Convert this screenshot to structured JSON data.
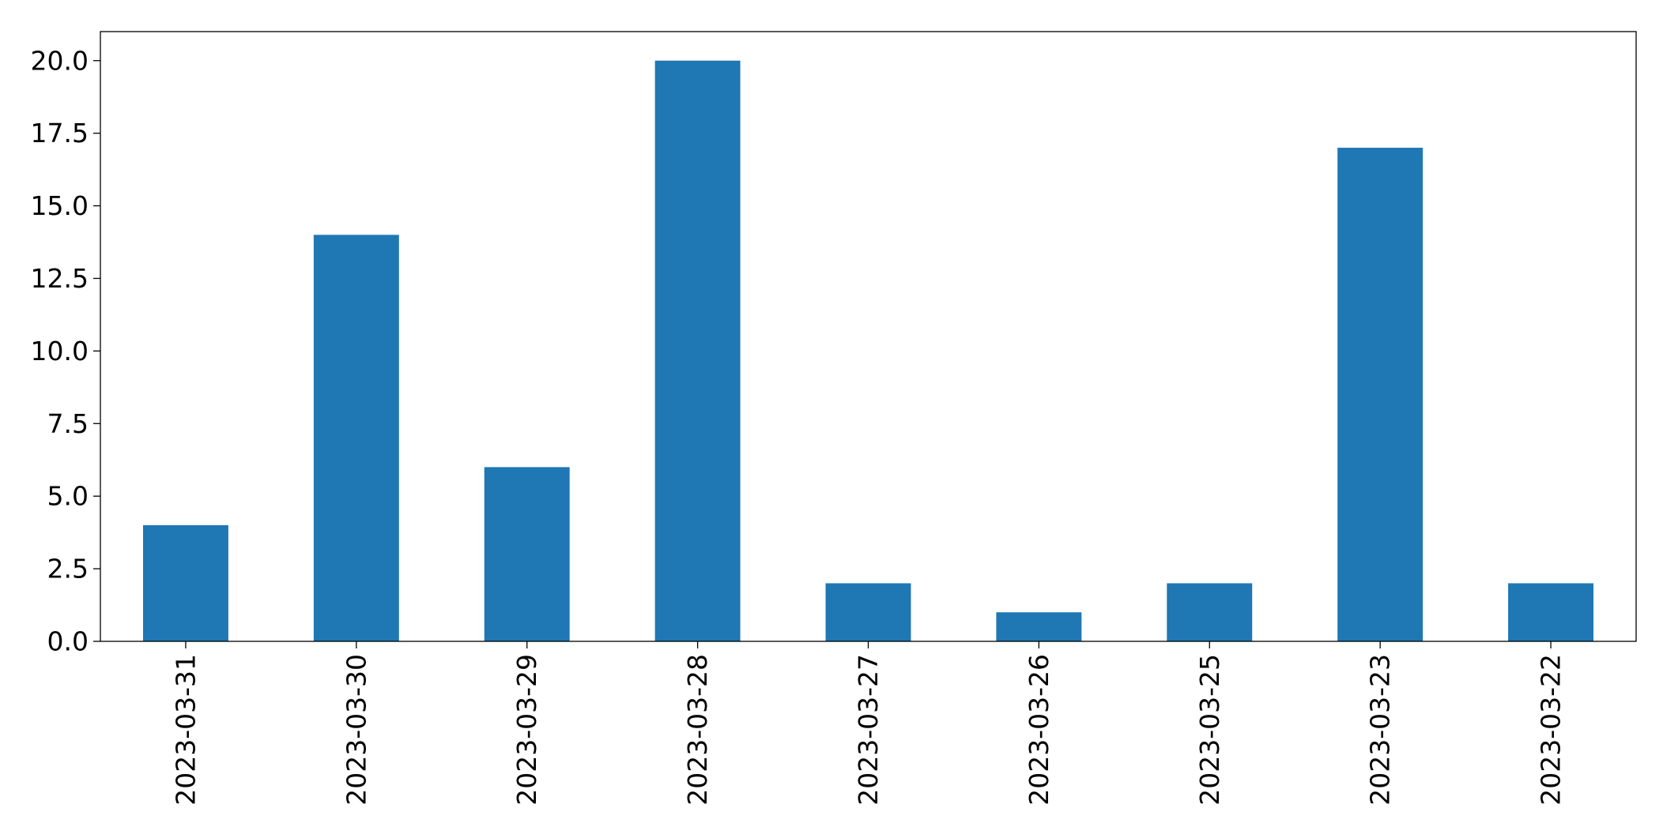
{
  "chart_data": {
    "type": "bar",
    "title": "",
    "xlabel": "",
    "ylabel": "",
    "categories": [
      "2023-03-31",
      "2023-03-30",
      "2023-03-29",
      "2023-03-28",
      "2023-03-27",
      "2023-03-26",
      "2023-03-25",
      "2023-03-23",
      "2023-03-22"
    ],
    "values": [
      4,
      14,
      6,
      20,
      2,
      1,
      2,
      17,
      2
    ],
    "ylim": [
      0,
      21
    ],
    "yticks": [
      "0.0",
      "2.5",
      "5.0",
      "7.5",
      "10.0",
      "12.5",
      "15.0",
      "17.5",
      "20.0"
    ],
    "bar_color": "#1f77b4",
    "grid": false,
    "legend": "none",
    "x_tick_rotation": "vertical"
  }
}
